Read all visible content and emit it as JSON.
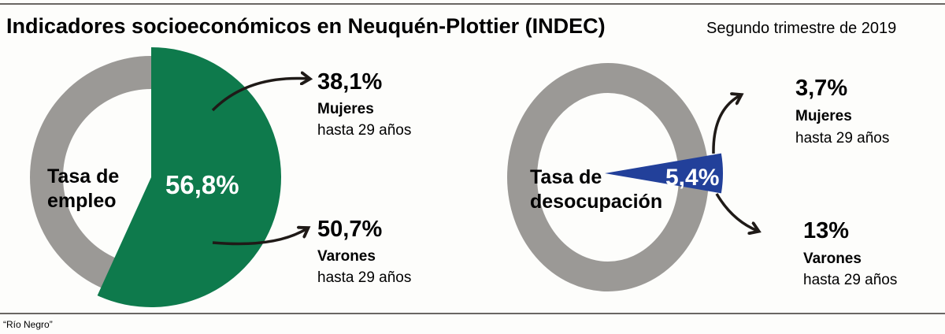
{
  "header": {
    "title": "Indicadores socioeconómicos en Neuquén-Plottier (INDEC)",
    "subtitle": "Segundo trimestre de 2019"
  },
  "source": "“Río Negro”",
  "colors": {
    "employment": "#0e7a4c",
    "unemployment": "#22409a",
    "ring": "#9b9996",
    "text": "#1f1a17"
  },
  "chart_data": [
    {
      "type": "pie",
      "title": "Tasa de empleo",
      "title_lines": [
        "Tasa de",
        "empleo"
      ],
      "value": 56.8,
      "value_label": "56,8%",
      "breakdown": [
        {
          "value": 38.1,
          "value_label": "38,1%",
          "group": "Mujeres",
          "detail": "hasta 29 años"
        },
        {
          "value": 50.7,
          "value_label": "50,7%",
          "group": "Varones",
          "detail": "hasta 29 años"
        }
      ]
    },
    {
      "type": "pie",
      "title": "Tasa de desocupación",
      "title_lines": [
        "Tasa de",
        "desocupación"
      ],
      "value": 5.4,
      "value_label": "5,4%",
      "breakdown": [
        {
          "value": 3.7,
          "value_label": "3,7%",
          "group": "Mujeres",
          "detail": "hasta 29 años"
        },
        {
          "value": 13,
          "value_label": "13%",
          "group": "Varones",
          "detail": "hasta 29 años"
        }
      ]
    }
  ]
}
